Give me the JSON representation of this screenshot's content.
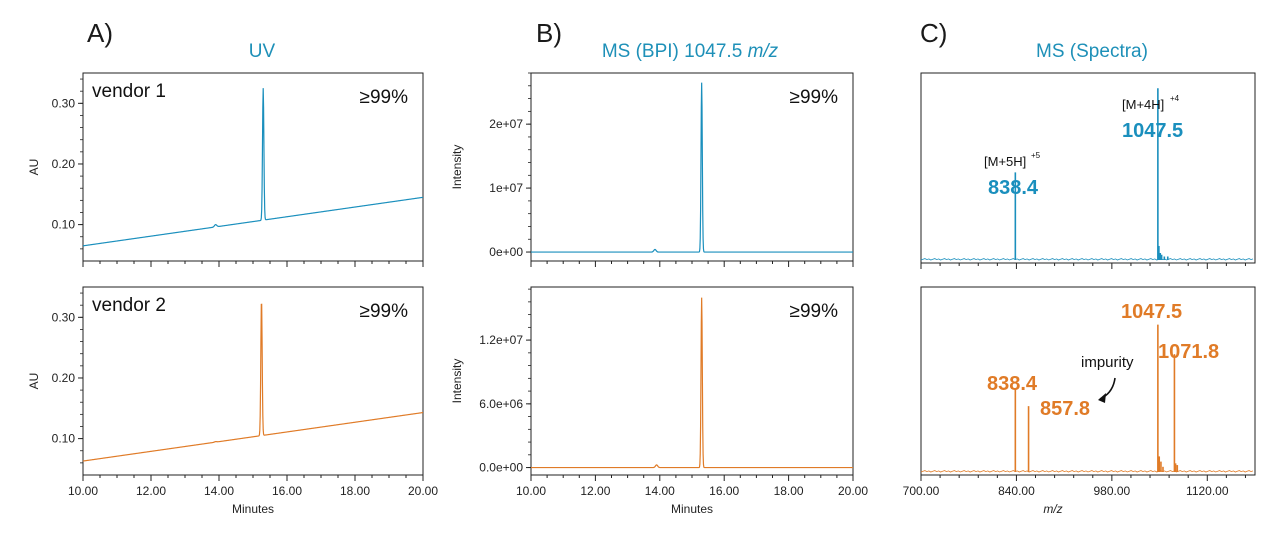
{
  "colors": {
    "vendor1": "#1a8fbd",
    "vendor2": "#e07b27",
    "title": "#1e90b8",
    "axis": "#222222"
  },
  "panels": {
    "A": {
      "letter": "A)",
      "title": "UV"
    },
    "B": {
      "letter": "B)",
      "title_main": "MS (BPI) 1047.5 ",
      "title_italic": "m/z"
    },
    "C": {
      "letter": "C)",
      "title": "MS (Spectra)"
    }
  },
  "chart_data": [
    {
      "id": "uv_vendor1",
      "type": "line",
      "panel": "A",
      "label": "vendor 1",
      "purity": "≥99%",
      "series_color": "#1a8fbd",
      "xlim": [
        10,
        20
      ],
      "ylim": [
        0.04,
        0.35
      ],
      "ylabel": "AU",
      "xlabel": "",
      "yticks": [
        0.1,
        0.2,
        0.3
      ],
      "ytick_labels": [
        "0.10",
        "0.20",
        "0.30"
      ],
      "xticks": [
        10,
        12,
        14,
        16,
        18,
        20
      ],
      "xtick_labels": [],
      "baseline": {
        "x": [
          10,
          20
        ],
        "y": [
          0.065,
          0.145
        ]
      },
      "peaks": [
        {
          "x": 15.3,
          "height": 0.325
        },
        {
          "x": 13.9,
          "height": 0.1
        }
      ]
    },
    {
      "id": "uv_vendor2",
      "type": "line",
      "panel": "A",
      "label": "vendor 2",
      "purity": "≥99%",
      "series_color": "#e07b27",
      "xlim": [
        10,
        20
      ],
      "ylim": [
        0.04,
        0.35
      ],
      "ylabel": "AU",
      "xlabel": "Minutes",
      "yticks": [
        0.1,
        0.2,
        0.3
      ],
      "ytick_labels": [
        "0.10",
        "0.20",
        "0.30"
      ],
      "xticks": [
        10,
        12,
        14,
        16,
        18,
        20
      ],
      "xtick_labels": [
        "10.00",
        "12.00",
        "14.00",
        "16.00",
        "18.00",
        "20.00"
      ],
      "baseline": {
        "x": [
          10,
          20
        ],
        "y": [
          0.063,
          0.143
        ]
      },
      "peaks": [
        {
          "x": 15.25,
          "height": 0.33
        },
        {
          "x": 13.9,
          "height": 0.095
        }
      ]
    },
    {
      "id": "bpi_vendor1",
      "type": "line",
      "panel": "B",
      "purity": "≥99%",
      "series_color": "#1a8fbd",
      "xlim": [
        10,
        20
      ],
      "ylim": [
        -1400000,
        28000000
      ],
      "ylabel": "Intensity",
      "xlabel": "",
      "yticks": [
        0,
        10000000,
        20000000
      ],
      "ytick_labels": [
        "0e+00",
        "1e+07",
        "2e+07"
      ],
      "xticks": [
        10,
        12,
        14,
        16,
        18,
        20
      ],
      "xtick_labels": [],
      "baseline": {
        "x": [
          10,
          20
        ],
        "y": [
          0,
          0
        ]
      },
      "peaks": [
        {
          "x": 15.3,
          "height": 26500000
        },
        {
          "x": 13.85,
          "height": 400000
        }
      ]
    },
    {
      "id": "bpi_vendor2",
      "type": "line",
      "panel": "B",
      "purity": "≥99%",
      "series_color": "#e07b27",
      "xlim": [
        10,
        20
      ],
      "ylim": [
        -700000,
        17000000
      ],
      "ylabel": "Intensity",
      "xlabel": "Minutes",
      "yticks": [
        0,
        6000000,
        12000000
      ],
      "ytick_labels": [
        "0.0e+00",
        "6.0e+06",
        "1.2e+07"
      ],
      "xticks": [
        10,
        12,
        14,
        16,
        18,
        20
      ],
      "xtick_labels": [
        "10.00",
        "12.00",
        "14.00",
        "16.00",
        "18.00",
        "20.00"
      ],
      "baseline": {
        "x": [
          10,
          20
        ],
        "y": [
          0,
          0
        ]
      },
      "peaks": [
        {
          "x": 15.3,
          "height": 16000000
        },
        {
          "x": 13.9,
          "height": 250000
        }
      ]
    },
    {
      "id": "ms_vendor1",
      "type": "bar",
      "panel": "C",
      "series_color": "#1a8fbd",
      "xlim": [
        700,
        1190
      ],
      "ylim": [
        0,
        1.05
      ],
      "xlabel": "",
      "xticks": [
        700,
        840,
        980,
        1120
      ],
      "xtick_labels": [],
      "sticks": {
        "mz": [
          838.4,
          1047.5,
          1049.0,
          1051.0,
          1053.0,
          1057.0,
          1062.0
        ],
        "intensity": [
          0.5,
          0.98,
          0.08,
          0.04,
          0.03,
          0.02,
          0.02
        ]
      },
      "annotations": [
        {
          "ion": "[M+5H]",
          "charge": "+5",
          "value": "838.4",
          "mz": 838.4
        },
        {
          "ion": "[M+4H]",
          "charge": "+4",
          "value": "1047.5",
          "mz": 1047.5
        }
      ]
    },
    {
      "id": "ms_vendor2",
      "type": "bar",
      "panel": "C",
      "series_color": "#e07b27",
      "xlim": [
        700,
        1190
      ],
      "ylim": [
        0,
        1.05
      ],
      "xlabel": "m/z",
      "xticks": [
        700,
        840,
        980,
        1120
      ],
      "xtick_labels": [
        "700.00",
        "840.00",
        "980.00",
        "1120.00"
      ],
      "sticks": {
        "mz": [
          838.4,
          857.8,
          1047.5,
          1049.5,
          1052.0,
          1055.0,
          1071.8,
          1073.5,
          1076.0
        ],
        "intensity": [
          0.48,
          0.38,
          0.85,
          0.09,
          0.06,
          0.03,
          0.68,
          0.05,
          0.04
        ]
      },
      "annotations": [
        {
          "value": "838.4",
          "mz": 838.4
        },
        {
          "value": "857.8",
          "mz": 857.8
        },
        {
          "value": "1047.5",
          "mz": 1047.5
        },
        {
          "value": "1071.8",
          "mz": 1071.8
        }
      ],
      "impurity_label": "impurity"
    }
  ]
}
